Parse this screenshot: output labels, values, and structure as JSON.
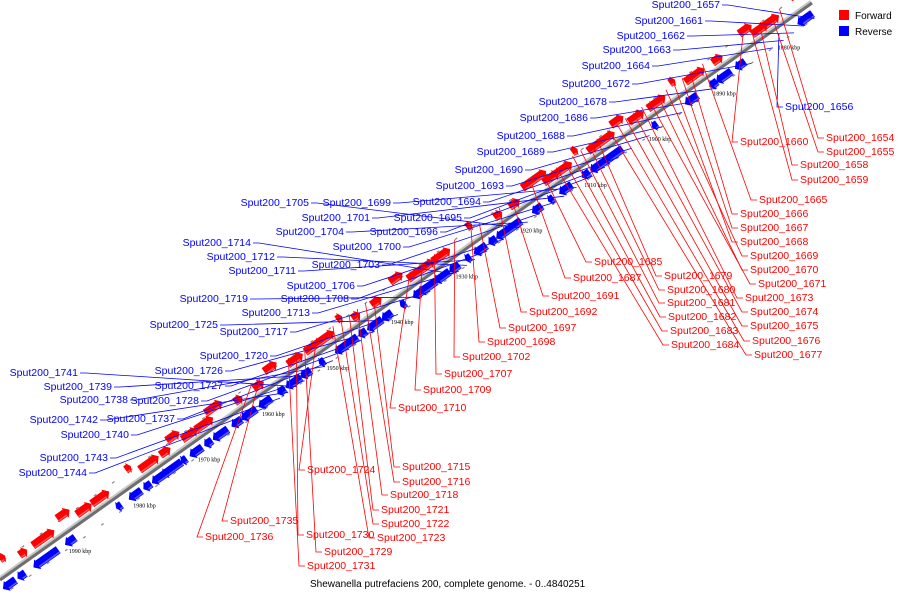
{
  "caption": "Shewanella putrefaciens 200, complete genome. - 0..4840251",
  "legend": [
    {
      "label": "Forward",
      "color": "#ff0000"
    },
    {
      "label": "Reverse",
      "color": "#0000ff"
    }
  ],
  "colors": {
    "forward": "#ff0000",
    "reverse": "#0000ff",
    "axis": "#808080"
  },
  "ticks": [
    {
      "kbp": 1880,
      "label": "1880 kbp"
    },
    {
      "kbp": 1890,
      "label": "1890 kbp"
    },
    {
      "kbp": 1900,
      "label": "1900 kbp"
    },
    {
      "kbp": 1910,
      "label": "1910 kbp"
    },
    {
      "kbp": 1920,
      "label": "1920 kbp"
    },
    {
      "kbp": 1930,
      "label": "1930 kbp"
    },
    {
      "kbp": 1940,
      "label": "1940 kbp"
    },
    {
      "kbp": 1950,
      "label": "1950 kbp"
    },
    {
      "kbp": 1960,
      "label": "1960 kbp"
    },
    {
      "kbp": 1970,
      "label": "1970 kbp"
    },
    {
      "kbp": 1980,
      "label": "1980 kbp"
    },
    {
      "kbp": 1990,
      "label": "1990 kbp"
    }
  ],
  "reverse_labels": [
    "Sput200_1656",
    "Sput200_1657",
    "Sput200_1661",
    "Sput200_1662",
    "Sput200_1663",
    "Sput200_1664",
    "Sput200_1672",
    "Sput200_1678",
    "Sput200_1686",
    "Sput200_1688",
    "Sput200_1689",
    "Sput200_1690",
    "Sput200_1693",
    "Sput200_1694",
    "Sput200_1695",
    "Sput200_1696",
    "Sput200_1699",
    "Sput200_1701",
    "Sput200_1700",
    "Sput200_1703",
    "Sput200_1704",
    "Sput200_1705",
    "Sput200_1706",
    "Sput200_1708",
    "Sput200_1711",
    "Sput200_1712",
    "Sput200_1713",
    "Sput200_1714",
    "Sput200_1717",
    "Sput200_1719",
    "Sput200_1720",
    "Sput200_1725",
    "Sput200_1726",
    "Sput200_1727",
    "Sput200_1728",
    "Sput200_1737",
    "Sput200_1738",
    "Sput200_1739",
    "Sput200_1740",
    "Sput200_1741",
    "Sput200_1742",
    "Sput200_1743",
    "Sput200_1744"
  ],
  "forward_labels": [
    "Sput200_1654",
    "Sput200_1655",
    "Sput200_1658",
    "Sput200_1659",
    "Sput200_1660",
    "Sput200_1665",
    "Sput200_1666",
    "Sput200_1667",
    "Sput200_1668",
    "Sput200_1669",
    "Sput200_1670",
    "Sput200_1671",
    "Sput200_1673",
    "Sput200_1674",
    "Sput200_1675",
    "Sput200_1676",
    "Sput200_1677",
    "Sput200_1679",
    "Sput200_1680",
    "Sput200_1681",
    "Sput200_1682",
    "Sput200_1683",
    "Sput200_1684",
    "Sput200_1685",
    "Sput200_1687",
    "Sput200_1691",
    "Sput200_1692",
    "Sput200_1697",
    "Sput200_1698",
    "Sput200_1702",
    "Sput200_1707",
    "Sput200_1709",
    "Sput200_1710",
    "Sput200_1715",
    "Sput200_1716",
    "Sput200_1718",
    "Sput200_1721",
    "Sput200_1722",
    "Sput200_1723",
    "Sput200_1724",
    "Sput200_1729",
    "Sput200_1730",
    "Sput200_1731",
    "Sput200_1735",
    "Sput200_1736"
  ]
}
